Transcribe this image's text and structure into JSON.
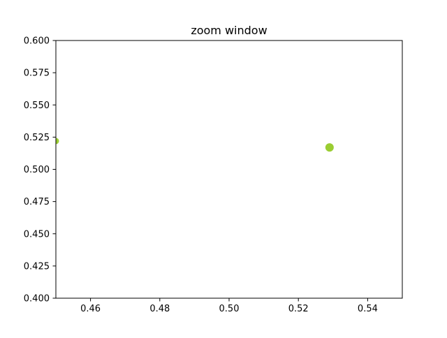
{
  "chart_data": {
    "type": "scatter",
    "title": "zoom window",
    "xlabel": "",
    "ylabel": "",
    "xlim": [
      0.45,
      0.55
    ],
    "ylim": [
      0.4,
      0.6
    ],
    "xticks": [
      0.46,
      0.48,
      0.5,
      0.52,
      0.54
    ],
    "yticks": [
      0.4,
      0.425,
      0.45,
      0.475,
      0.5,
      0.525,
      0.55,
      0.575,
      0.6
    ],
    "xtick_labels": [
      "0.46",
      "0.48",
      "0.50",
      "0.52",
      "0.54"
    ],
    "ytick_labels": [
      "0.400",
      "0.425",
      "0.450",
      "0.475",
      "0.500",
      "0.525",
      "0.550",
      "0.575",
      "0.600"
    ],
    "grid": false,
    "points": [
      {
        "x": 0.45,
        "y": 0.522,
        "size": 7,
        "color": "#9acd32"
      },
      {
        "x": 0.529,
        "y": 0.517,
        "size": 10,
        "color": "#9acd32"
      }
    ]
  }
}
